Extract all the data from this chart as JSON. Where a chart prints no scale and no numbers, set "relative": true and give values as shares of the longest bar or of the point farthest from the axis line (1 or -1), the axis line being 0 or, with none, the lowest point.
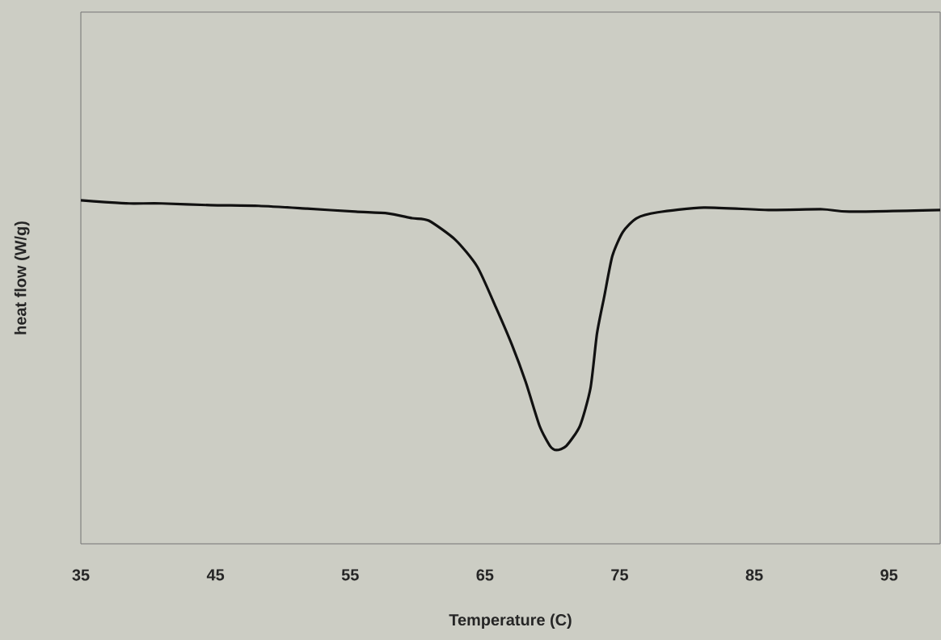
{
  "chart_data": {
    "type": "line",
    "relative": true,
    "xlabel": "Temperature (C)",
    "ylabel": "heat flow (W/g)",
    "xlim": [
      35,
      98.8
    ],
    "xticks": [
      35,
      45,
      55,
      65,
      75,
      85,
      95
    ],
    "marker": "none",
    "line_style": "solid",
    "series": [
      {
        "color": "#111111",
        "x": [
          35,
          36.8,
          38.6,
          41.0,
          44.6,
          48.2,
          51.8,
          55.4,
          57.8,
          59.6,
          60.83,
          62.81,
          64.43,
          65.81,
          67.01,
          68.03,
          69.05,
          69.83,
          70.32,
          71.04,
          72.06,
          72.84,
          73.32,
          73.86,
          74.46,
          75.24,
          76.26,
          77.82,
          81.25,
          86.05,
          90.07,
          92.06,
          98.8
        ],
        "values": [
          1.0,
          0.995,
          0.991,
          0.991,
          0.986,
          0.984,
          0.976,
          0.967,
          0.962,
          0.948,
          0.941,
          0.885,
          0.807,
          0.689,
          0.579,
          0.471,
          0.344,
          0.285,
          0.273,
          0.285,
          0.344,
          0.454,
          0.612,
          0.72,
          0.838,
          0.908,
          0.948,
          0.965,
          0.979,
          0.972,
          0.974,
          0.967,
          0.972
        ]
      }
    ]
  }
}
